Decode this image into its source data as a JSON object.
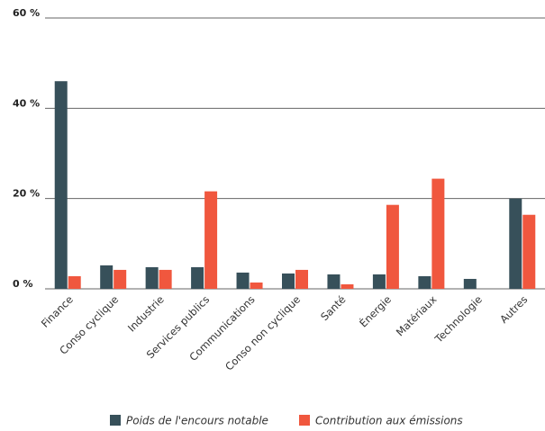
{
  "chart_data": {
    "type": "bar",
    "categories": [
      "Finance",
      "Conso cyclique",
      "Industrie",
      "Services publics",
      "Communications",
      "Conso non cyclique",
      "Santé",
      "Énergie",
      "Matériaux",
      "Technologie",
      "Autres"
    ],
    "series": [
      {
        "name": "Poids de l'encours notable",
        "color": "#37505a",
        "values": [
          46,
          5.2,
          4.8,
          4.8,
          3.6,
          3.4,
          3.2,
          3.2,
          2.8,
          2.2,
          20
        ]
      },
      {
        "name": "Contribution aux émissions",
        "color": "#f0573e",
        "values": [
          2.8,
          4.2,
          4.2,
          21.6,
          1.4,
          4.2,
          1.0,
          18.6,
          24.4,
          0,
          16.4
        ]
      }
    ],
    "ylim": [
      0,
      60
    ],
    "yticks": [
      {
        "value": 0,
        "label": "0 %"
      },
      {
        "value": 20,
        "label": "20 %"
      },
      {
        "value": 40,
        "label": "40 %"
      },
      {
        "value": 60,
        "label": "60 %"
      }
    ],
    "grid": true
  }
}
